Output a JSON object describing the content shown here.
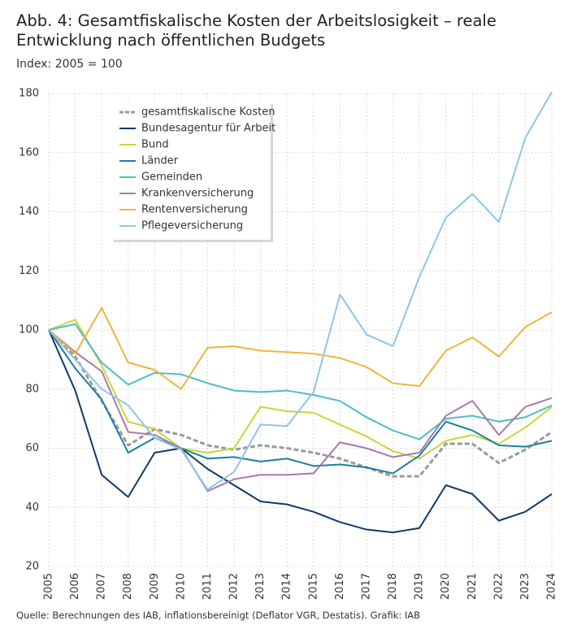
{
  "chart_data": {
    "type": "line",
    "title": "Abb. 4: Gesamtfiskalische Kosten der Arbeitslosigkeit – reale Entwicklung nach öffentlichen Budgets",
    "subtitle": "Index: 2005 = 100",
    "source": "Quelle: Berechnungen des IAB, inflationsbereinigt (Deflator VGR, Destatis). Grafik: IAB",
    "categories": [
      "2005",
      "2006",
      "2007",
      "2008",
      "2009",
      "2010",
      "2011",
      "2012",
      "2013",
      "2014",
      "2015",
      "2016",
      "2017",
      "2018",
      "2019",
      "2020",
      "2021",
      "2022",
      "2023",
      "2024"
    ],
    "ylim": [
      20,
      180
    ],
    "yticks": [
      20,
      40,
      60,
      80,
      100,
      120,
      140,
      160,
      180
    ],
    "grid": true,
    "series": [
      {
        "name": "gesamtfiskalische Kosten",
        "color": "#9a9a9a",
        "dashed": true,
        "values": [
          100,
          91,
          76,
          61,
          66.5,
          64.5,
          61,
          59.5,
          61,
          60,
          58.5,
          56.5,
          53.5,
          50.5,
          50.5,
          61.5,
          61.5,
          55,
          59.5,
          65.5
        ]
      },
      {
        "name": "Bundesagentur für Arbeit",
        "color": "#0e3a66",
        "values": [
          100,
          79.5,
          51,
          43.5,
          58.5,
          60,
          53,
          47.5,
          42,
          41,
          38.5,
          35,
          32.5,
          31.5,
          33,
          47.5,
          44.5,
          35.5,
          38.5,
          44.5
        ]
      },
      {
        "name": "Bund",
        "color": "#c8d63a",
        "values": [
          100,
          103.5,
          88,
          69,
          66.5,
          60,
          58.5,
          60,
          74,
          72.5,
          72,
          68,
          64,
          59,
          56.5,
          62.5,
          64.5,
          61.5,
          67,
          74
        ]
      },
      {
        "name": "Länder",
        "color": "#1a7fa0",
        "values": [
          100,
          87,
          76.5,
          58.5,
          63.5,
          60,
          56.5,
          57,
          55.5,
          56.5,
          54,
          54.5,
          53.5,
          51.5,
          57.5,
          69,
          66,
          61,
          60.5,
          62.5
        ]
      },
      {
        "name": "Gemeinden",
        "color": "#4fbcc4",
        "values": [
          100,
          102,
          89,
          81.5,
          85.5,
          85,
          82,
          79.5,
          79,
          79.5,
          78,
          76,
          70.5,
          66,
          63,
          70,
          71,
          69,
          70.5,
          74.5
        ]
      },
      {
        "name": "Krankenversicherung",
        "color": "#a67aad",
        "values": [
          100,
          92.5,
          86,
          65.5,
          64.5,
          60,
          45.5,
          49.5,
          51,
          51,
          51.5,
          62,
          60,
          57,
          58.5,
          71,
          76,
          64.5,
          74,
          77
        ]
      },
      {
        "name": "Rentenversicherung",
        "color": "#f0b43c",
        "values": [
          100,
          92,
          107.5,
          89,
          86.5,
          80,
          94,
          94.5,
          93,
          92.5,
          92,
          90.5,
          87.5,
          82,
          81,
          93,
          97.5,
          91,
          101,
          106
        ]
      },
      {
        "name": "Pflegeversicherung",
        "color": "#8ec5e8",
        "values": [
          100,
          90,
          80,
          74.5,
          63.5,
          59.5,
          46,
          52,
          68,
          67.5,
          79,
          112,
          98.5,
          94.5,
          118,
          138,
          146,
          136.5,
          165,
          180.5
        ]
      }
    ]
  }
}
